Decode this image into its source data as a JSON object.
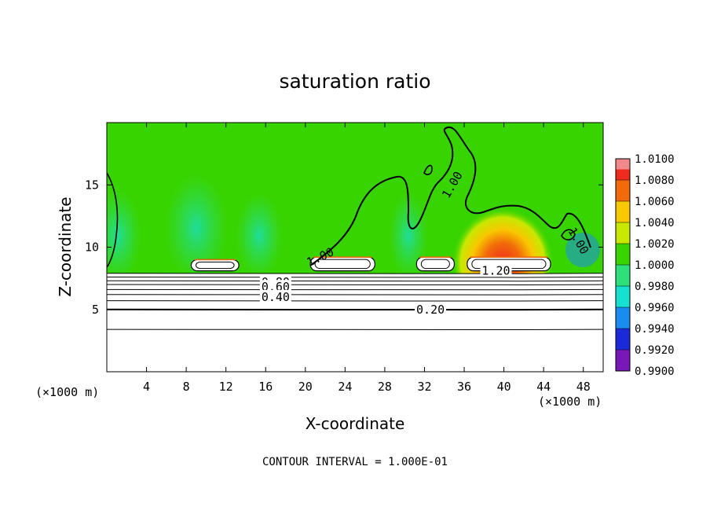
{
  "chart_data": {
    "type": "heatmap",
    "title": "saturation ratio",
    "xlabel": "X-coordinate",
    "ylabel": "Z-coordinate",
    "xlim": [
      0,
      50
    ],
    "ylim": [
      0,
      20
    ],
    "x_ticks": [
      "4",
      "8",
      "12",
      "16",
      "20",
      "24",
      "28",
      "32",
      "36",
      "40",
      "44",
      "48"
    ],
    "y_ticks": [
      "5",
      "10",
      "15"
    ],
    "x_unit_label_left": "(×1000 m)",
    "x_unit_label_right": "(×1000 m)",
    "colorbar": {
      "levels": [
        "1.0100",
        "1.0080",
        "1.0060",
        "1.0040",
        "1.0020",
        "1.0000",
        "0.9980",
        "0.9960",
        "0.9940",
        "0.9920",
        "0.9900"
      ],
      "colors": [
        "#f08a8a",
        "#ef2a1e",
        "#f26a0a",
        "#f8c800",
        "#c8e800",
        "#38d400",
        "#2ee07a",
        "#16e0d0",
        "#1a8cf0",
        "#1a2ad8",
        "#7818b8"
      ],
      "min": 0.99,
      "max": 1.01
    },
    "background_field": {
      "value": 1.0,
      "color": "#38d400"
    },
    "warm_anomaly": {
      "x_center": 39,
      "z_center": 10.5,
      "peak": 1.0065
    },
    "contour_labels": [
      {
        "text": "1.00",
        "x": 34.8,
        "z": 15.0,
        "angle": -60
      },
      {
        "text": "1.00",
        "x": 47.5,
        "z": 10.5,
        "angle": 60
      },
      {
        "text": "1.00",
        "x": 21.5,
        "z": 9.2,
        "angle": -25
      },
      {
        "text": "1.20",
        "x": 39.2,
        "z": 8.1,
        "angle": 0
      },
      {
        "text": "0.80",
        "x": 17.0,
        "z": 7.2,
        "angle": 0
      },
      {
        "text": "0.60",
        "x": 17.0,
        "z": 6.8,
        "angle": 0
      },
      {
        "text": "0.40",
        "x": 17.0,
        "z": 6.0,
        "angle": 0
      },
      {
        "text": "0.20",
        "x": 32.6,
        "z": 5.0,
        "angle": 0
      }
    ],
    "horizontal_contours_z": [
      3.4,
      5.0,
      5.7,
      6.2,
      6.6,
      7.0,
      7.3,
      7.6,
      7.9
    ],
    "cloud_regions": [
      {
        "x1": 8.5,
        "x2": 13.3,
        "z1": 8.1,
        "z2": 9.0
      },
      {
        "x1": 20.5,
        "x2": 27.0,
        "z1": 8.1,
        "z2": 9.2
      },
      {
        "x1": 31.2,
        "x2": 35.0,
        "z1": 8.1,
        "z2": 9.2
      },
      {
        "x1": 36.3,
        "x2": 44.7,
        "z1": 8.1,
        "z2": 9.2
      }
    ],
    "contour_interval_note": "CONTOUR INTERVAL = 1.000E-01",
    "grid": false,
    "legend": "colorbar-right"
  }
}
